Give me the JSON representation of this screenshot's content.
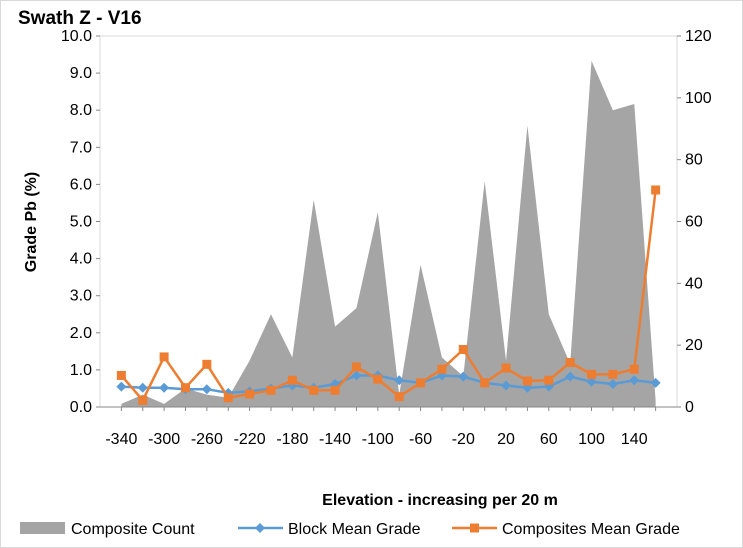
{
  "chart_data": {
    "type": "area",
    "title": "Swath Z - V16",
    "xlabel": "Elevation - increasing per 20 m",
    "ylabel": "Grade Pb (%)",
    "ylim": [
      0,
      10
    ],
    "y_ticks": [
      "0.0",
      "1.0",
      "2.0",
      "3.0",
      "4.0",
      "5.0",
      "6.0",
      "7.0",
      "8.0",
      "9.0",
      "10.0"
    ],
    "y2lim": [
      0,
      120
    ],
    "y2_ticks": [
      "0",
      "20",
      "40",
      "60",
      "80",
      "100",
      "120"
    ],
    "x_tick_labels": [
      "-340",
      "-300",
      "-260",
      "-220",
      "-180",
      "-140",
      "-100",
      "-60",
      "-20",
      "20",
      "60",
      "100",
      "140"
    ],
    "categories": [
      -340,
      -320,
      -300,
      -280,
      -260,
      -240,
      -220,
      -200,
      -180,
      -160,
      -140,
      -120,
      -100,
      -80,
      -60,
      -40,
      -20,
      0,
      20,
      40,
      60,
      80,
      100,
      120,
      140,
      160
    ],
    "series": [
      {
        "name": "Composite Count",
        "kind": "area",
        "axis": "secondary",
        "color": "#a5a5a5",
        "values": [
          1,
          4,
          1,
          6,
          4,
          3,
          15,
          30,
          16,
          67,
          26,
          32,
          63,
          4,
          46,
          16,
          10,
          73,
          15,
          91,
          30,
          14,
          112,
          96,
          98,
          2
        ]
      },
      {
        "name": "Block Mean Grade",
        "kind": "line",
        "axis": "primary",
        "color": "#5b9bd5",
        "values": [
          0.55,
          0.52,
          0.52,
          0.48,
          0.48,
          0.38,
          0.42,
          0.5,
          0.58,
          0.52,
          0.62,
          0.85,
          0.85,
          0.72,
          0.65,
          0.85,
          0.82,
          0.65,
          0.58,
          0.52,
          0.55,
          0.82,
          0.68,
          0.62,
          0.72,
          0.65
        ]
      },
      {
        "name": "Composites Mean Grade",
        "kind": "line",
        "axis": "primary",
        "color": "#ed7d31",
        "values": [
          0.85,
          0.18,
          1.35,
          0.52,
          1.15,
          0.25,
          0.35,
          0.45,
          0.72,
          0.45,
          0.45,
          1.08,
          0.75,
          0.28,
          0.65,
          1.02,
          1.55,
          0.65,
          1.05,
          0.7,
          0.72,
          1.2,
          0.88,
          0.88,
          1.02,
          5.85
        ]
      }
    ],
    "legend": [
      "Composite Count",
      "Block Mean Grade",
      "Composites Mean Grade"
    ],
    "legend_position": "bottom"
  }
}
